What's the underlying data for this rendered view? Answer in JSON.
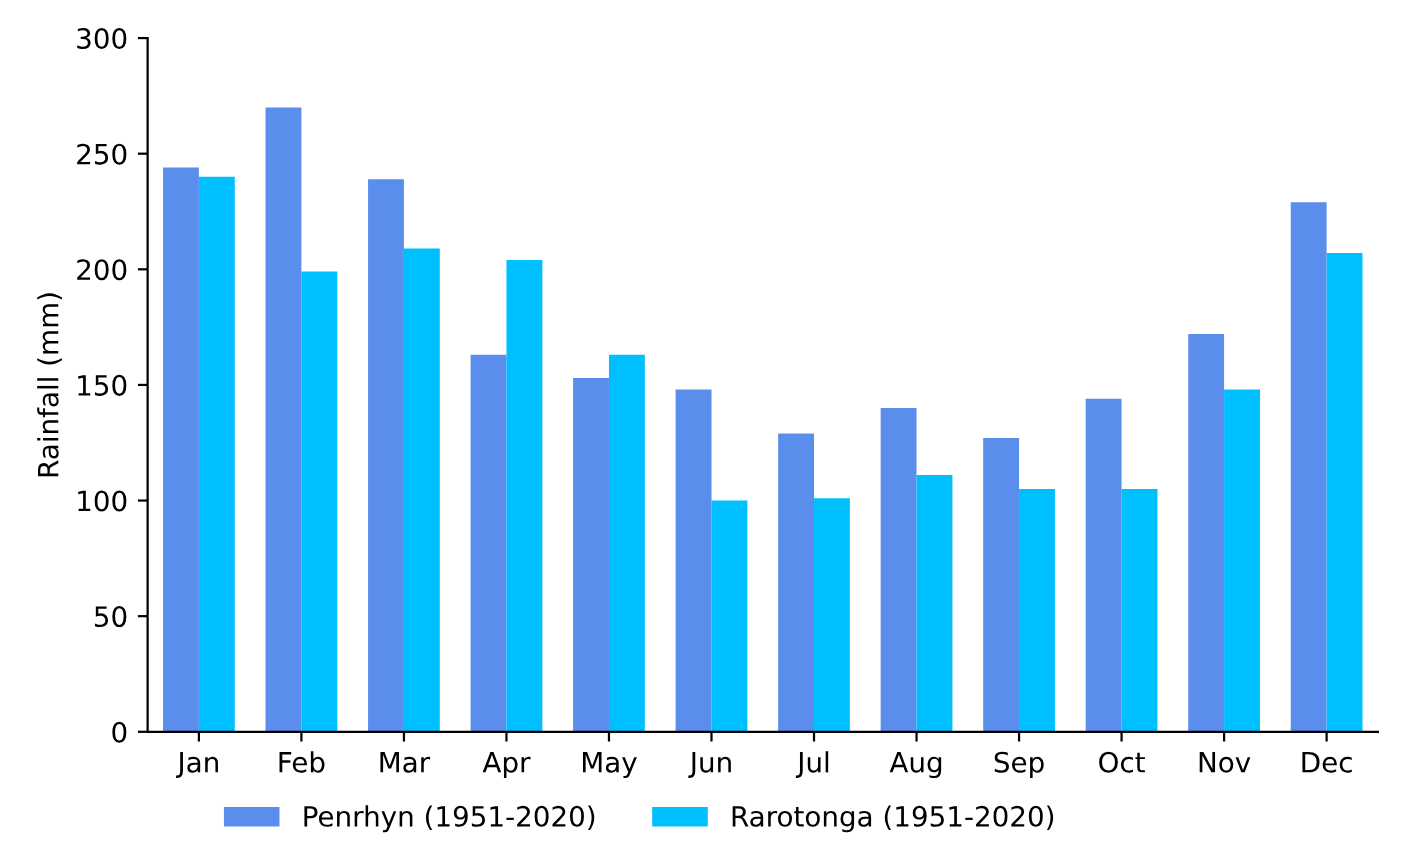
{
  "chart_data": {
    "type": "bar",
    "ylabel": "Rainfall (mm)",
    "categories": [
      "Jan",
      "Feb",
      "Mar",
      "Apr",
      "May",
      "Jun",
      "Jul",
      "Aug",
      "Sep",
      "Oct",
      "Nov",
      "Dec"
    ],
    "series": [
      {
        "name": "Penrhyn (1951-2020)",
        "color": "#5b8ded",
        "values": [
          244,
          270,
          239,
          163,
          153,
          148,
          129,
          140,
          127,
          144,
          172,
          229
        ]
      },
      {
        "name": "Rarotonga (1951-2020)",
        "color": "#00bfff",
        "values": [
          240,
          199,
          209,
          204,
          163,
          100,
          101,
          111,
          105,
          105,
          148,
          207
        ]
      }
    ],
    "ylim": [
      0,
      300
    ],
    "yticks": [
      0,
      50,
      100,
      150,
      200,
      250,
      300
    ],
    "grid": false,
    "legend": "bottom"
  }
}
